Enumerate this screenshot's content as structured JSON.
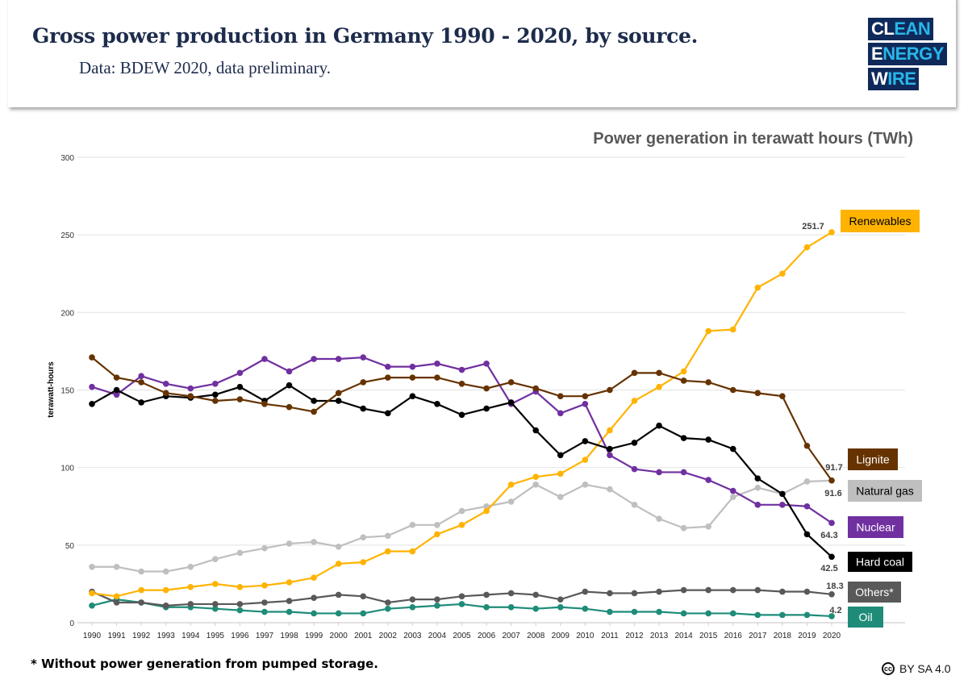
{
  "header": {
    "title": "Gross power production in Germany 1990 - 2020, by source.",
    "subtitle": "Data: BDEW 2020, data preliminary.",
    "logo": [
      "CLEAN",
      "ENERGY",
      "WIRE"
    ]
  },
  "footnote": "* Without power generation from pumped storage.",
  "license": {
    "icon": "creative-commons-icon",
    "label": "BY SA 4.0"
  },
  "chart_data": {
    "type": "line",
    "title": "Power generation in terawatt hours (TWh)",
    "ylabel": "terawatt-hours",
    "xlabel": "",
    "ylim": [
      0,
      300
    ],
    "yticks": [
      "0",
      "50",
      "100",
      "150",
      "200",
      "250",
      "300"
    ],
    "grid": true,
    "x": [
      "1990",
      "1991",
      "1992",
      "1993",
      "1994",
      "1995",
      "1996",
      "1997",
      "1998",
      "1999",
      "2000",
      "2001",
      "2002",
      "2003",
      "2004",
      "2005",
      "2006",
      "2007",
      "2008",
      "2009",
      "2010",
      "2011",
      "2012",
      "2013",
      "2014",
      "2015",
      "2016",
      "2017",
      "2018",
      "2019",
      "2020"
    ],
    "series": [
      {
        "name": "Renewables",
        "color": "#FFB300",
        "label_text_color": "#000000",
        "end_label": "251.7",
        "values": [
          19,
          17,
          21,
          21,
          23,
          25,
          23,
          24,
          26,
          29,
          38,
          39,
          46,
          46,
          57,
          63,
          72,
          89,
          94,
          96,
          105,
          124,
          143,
          152,
          162,
          188,
          189,
          216,
          225,
          242,
          251.7
        ]
      },
      {
        "name": "Lignite",
        "color": "#663300",
        "label_text_color": "#ffffff",
        "end_label": "91.7",
        "values": [
          171,
          158,
          155,
          148,
          146,
          143,
          144,
          141,
          139,
          136,
          148,
          155,
          158,
          158,
          158,
          154,
          151,
          155,
          151,
          146,
          146,
          150,
          161,
          161,
          156,
          155,
          150,
          148,
          146,
          114,
          91.7
        ]
      },
      {
        "name": "Natural gas",
        "color": "#BFBFBF",
        "label_text_color": "#000000",
        "end_label": "91.6",
        "values": [
          36,
          36,
          33,
          33,
          36,
          41,
          45,
          48,
          51,
          52,
          49,
          55,
          56,
          63,
          63,
          72,
          75,
          78,
          89,
          81,
          89,
          86,
          76,
          67,
          61,
          62,
          81,
          87,
          83,
          91,
          91.6
        ]
      },
      {
        "name": "Nuclear",
        "color": "#7030A0",
        "label_text_color": "#ffffff",
        "end_label": "64.3",
        "values": [
          152,
          147,
          159,
          154,
          151,
          154,
          161,
          170,
          162,
          170,
          170,
          171,
          165,
          165,
          167,
          163,
          167,
          141,
          149,
          135,
          141,
          108,
          99,
          97,
          97,
          92,
          85,
          76,
          76,
          75,
          64.3
        ]
      },
      {
        "name": "Hard coal",
        "color": "#000000",
        "label_text_color": "#ffffff",
        "end_label": "42.5",
        "values": [
          141,
          150,
          142,
          146,
          145,
          147,
          152,
          143,
          153,
          143,
          143,
          138,
          135,
          146,
          141,
          134,
          138,
          142,
          124,
          108,
          117,
          112,
          116,
          127,
          119,
          118,
          112,
          93,
          83,
          57,
          42.5
        ]
      },
      {
        "name": "Others*",
        "color": "#595959",
        "label_text_color": "#ffffff",
        "end_label": "18.3",
        "values": [
          20,
          13,
          13,
          11,
          12,
          12,
          12,
          13,
          14,
          16,
          18,
          17,
          13,
          15,
          15,
          17,
          18,
          19,
          18,
          15,
          20,
          19,
          19,
          20,
          21,
          21,
          21,
          21,
          20,
          20,
          18.3
        ]
      },
      {
        "name": "Oil",
        "color": "#1E8C78",
        "label_text_color": "#ffffff",
        "end_label": "4.2",
        "values": [
          11,
          15,
          13,
          10,
          10,
          9,
          8,
          7,
          7,
          6,
          6,
          6,
          9,
          10,
          11,
          12,
          10,
          10,
          9,
          10,
          9,
          7,
          7,
          7,
          6,
          6,
          6,
          5,
          5,
          5,
          4.2
        ]
      }
    ]
  }
}
